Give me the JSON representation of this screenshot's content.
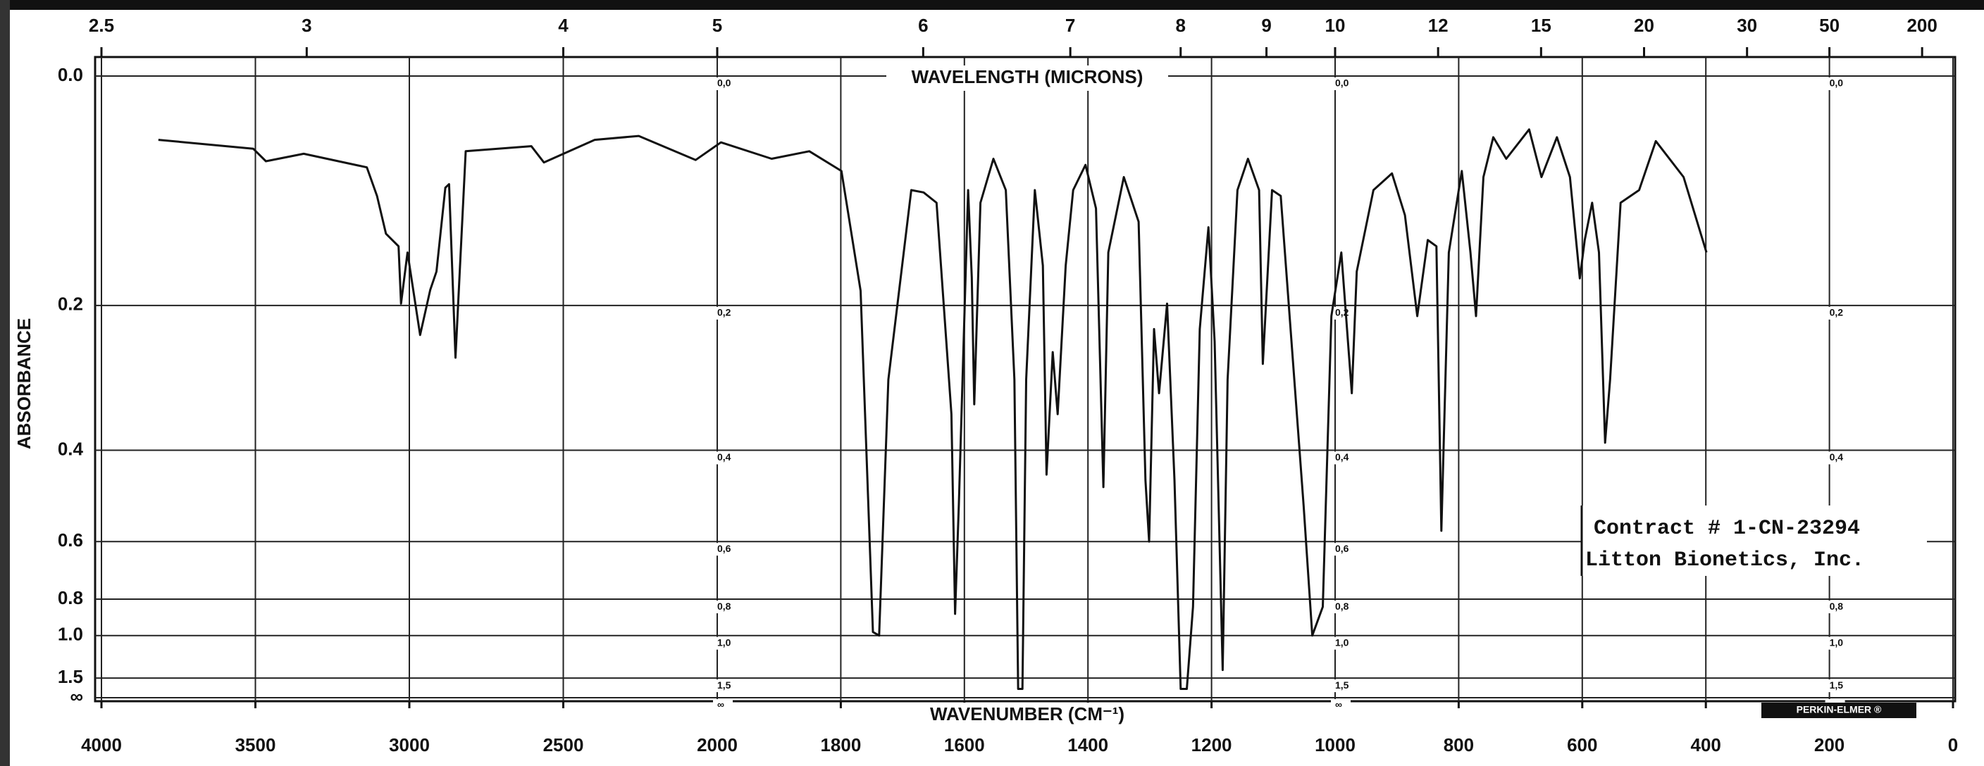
{
  "chart_data": {
    "type": "line",
    "annotations": {
      "top_axis_label": "WAVELENGTH (MICRONS)",
      "bottom_axis_label": "WAVENUMBER (CM⁻¹)",
      "y_axis_label": "ABSORBANCE",
      "contract_line_1": "Contract # 1-CN-23294",
      "contract_line_2": "Litton Bionetics, Inc.",
      "maker": "PERKIN-ELMER ®"
    },
    "color": "#111111",
    "x_scale_change": 2000,
    "y_axis_linear_in": "transmittance",
    "xlim": [
      4000,
      0
    ],
    "xticks": [
      4000,
      3500,
      3000,
      2500,
      2000,
      1800,
      1600,
      1400,
      1200,
      1000,
      800,
      600,
      400,
      200,
      0
    ],
    "x2ticks": [
      2.5,
      3,
      4,
      5,
      6,
      7,
      8,
      9,
      10,
      12,
      15,
      20,
      30,
      50,
      200
    ],
    "yticks": [
      {
        "value": 0,
        "label": "0.0"
      },
      0.2,
      0.4,
      0.6,
      0.8,
      {
        "value": 1,
        "label": "1.0"
      },
      1.5,
      {
        "value": null,
        "label": "∞"
      }
    ],
    "column_ytick_labels": [
      "0,0",
      "0,2",
      "0,4",
      "0,6",
      "0,8",
      "1,0",
      "1,5",
      "∞"
    ],
    "grid": true,
    "x": [
      3815,
      3507,
      3466,
      3343,
      3138,
      3105,
      3076,
      3035,
      3027,
      3006,
      2965,
      2932,
      2912,
      2883,
      2871,
      2850,
      2817,
      2604,
      2563,
      2398,
      2255,
      2070,
      1994,
      1912,
      1851,
      1799,
      1768,
      1748,
      1738,
      1723,
      1686,
      1666,
      1645,
      1621,
      1615,
      1609,
      1594,
      1588,
      1584,
      1574,
      1553,
      1533,
      1519,
      1513,
      1506,
      1500,
      1486,
      1473,
      1467,
      1457,
      1449,
      1436,
      1424,
      1404,
      1387,
      1375,
      1367,
      1342,
      1318,
      1307,
      1301,
      1293,
      1285,
      1272,
      1260,
      1250,
      1240,
      1230,
      1219,
      1205,
      1195,
      1182,
      1174,
      1158,
      1141,
      1123,
      1117,
      1102,
      1088,
      1051,
      1037,
      1020,
      1006,
      990,
      973,
      965,
      938,
      908,
      887,
      867,
      850,
      836,
      828,
      816,
      795,
      781,
      772,
      760,
      744,
      723,
      686,
      666,
      641,
      620,
      604,
      596,
      584,
      573,
      563,
      555,
      538,
      508,
      481,
      436,
      399
    ],
    "values": [
      0.047,
      0.054,
      0.064,
      0.058,
      0.069,
      0.093,
      0.127,
      0.139,
      0.198,
      0.145,
      0.234,
      0.183,
      0.164,
      0.086,
      0.083,
      0.262,
      0.056,
      0.052,
      0.065,
      0.047,
      0.044,
      0.063,
      0.049,
      0.062,
      0.056,
      0.072,
      0.184,
      0.976,
      1.0,
      0.291,
      0.088,
      0.09,
      0.099,
      0.341,
      0.87,
      0.51,
      0.088,
      0.17,
      0.326,
      0.099,
      0.062,
      0.088,
      0.291,
      1.85,
      1.85,
      0.291,
      0.088,
      0.158,
      0.445,
      0.255,
      0.341,
      0.158,
      0.088,
      0.067,
      0.104,
      0.47,
      0.145,
      0.077,
      0.116,
      0.456,
      0.6,
      0.227,
      0.31,
      0.198,
      0.456,
      1.85,
      1.85,
      0.835,
      0.227,
      0.121,
      0.242,
      1.35,
      0.291,
      0.088,
      0.062,
      0.088,
      0.27,
      0.088,
      0.093,
      0.51,
      1.0,
      0.835,
      0.212,
      0.145,
      0.31,
      0.164,
      0.088,
      0.074,
      0.11,
      0.212,
      0.133,
      0.139,
      0.571,
      0.145,
      0.072,
      0.145,
      0.212,
      0.077,
      0.045,
      0.062,
      0.039,
      0.077,
      0.045,
      0.077,
      0.171,
      0.133,
      0.099,
      0.145,
      0.387,
      0.291,
      0.099,
      0.088,
      0.048,
      0.077,
      0.145
    ]
  }
}
